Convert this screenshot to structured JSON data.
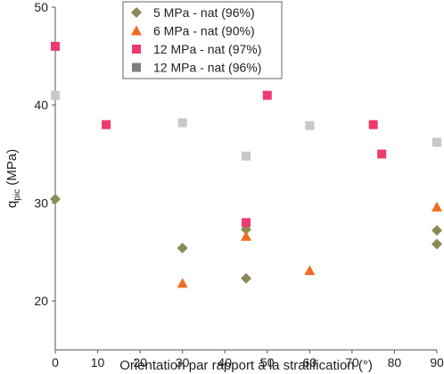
{
  "chart_data": {
    "type": "scatter",
    "title": "",
    "xlabel": "Orientation par rapport à la stratification (°)",
    "ylabel_main": "q",
    "ylabel_sub": "pic",
    "ylabel_unit": " (MPa)",
    "xlim": [
      0,
      90
    ],
    "ylim": [
      15,
      50
    ],
    "xticks": [
      0,
      10,
      20,
      30,
      40,
      50,
      60,
      70,
      80,
      90
    ],
    "yticks": [
      20,
      30,
      40,
      50
    ],
    "grid": false,
    "legend_position": "top-center",
    "series": [
      {
        "name": "5 MPa - nat (96%)",
        "marker": "diamond",
        "color": "#8b8a55",
        "points": [
          [
            0,
            30.4
          ],
          [
            30,
            25.4
          ],
          [
            45,
            22.3
          ],
          [
            45,
            27.3
          ],
          [
            90,
            27.2
          ],
          [
            90,
            25.8
          ]
        ]
      },
      {
        "name": "6 MPa - nat (90%)",
        "marker": "triangle",
        "color": "#f26b21",
        "points": [
          [
            30,
            21.8
          ],
          [
            45,
            26.6
          ],
          [
            60,
            23.1
          ],
          [
            90,
            29.6
          ]
        ]
      },
      {
        "name": "12 MPa - nat (97%)",
        "marker": "square",
        "color": "#ee3a6c",
        "points": [
          [
            0,
            46.0
          ],
          [
            12,
            38.0
          ],
          [
            45,
            28.0
          ],
          [
            50,
            41.0
          ],
          [
            75,
            38.0
          ],
          [
            77,
            35.0
          ]
        ]
      },
      {
        "name": "12 MPa - nat (96%)",
        "marker": "square",
        "color": "#c8c8c8",
        "legend_color": "#7f7f7f",
        "points": [
          [
            0,
            41.0
          ],
          [
            30,
            38.2
          ],
          [
            45,
            34.8
          ],
          [
            60,
            37.9
          ],
          [
            90,
            36.2
          ]
        ]
      }
    ]
  }
}
